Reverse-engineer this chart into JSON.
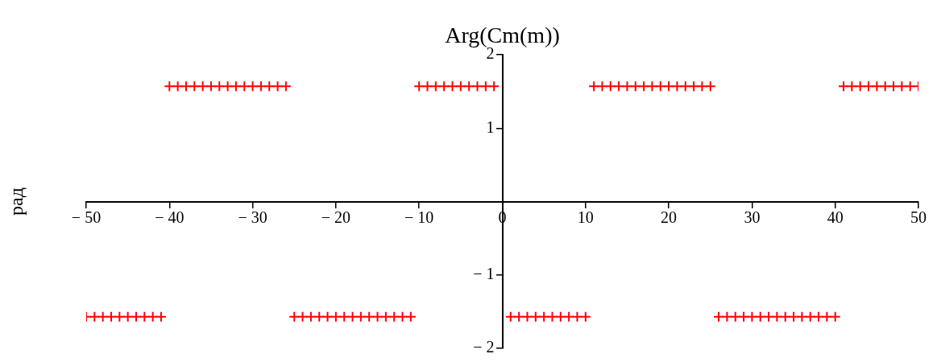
{
  "chart_data": {
    "type": "scatter",
    "title": "Arg(Cm(m))",
    "ylabel": "рад",
    "x": [
      -50,
      -49,
      -48,
      -47,
      -46,
      -45,
      -44,
      -43,
      -42,
      -41,
      -40,
      -39,
      -38,
      -37,
      -36,
      -35,
      -34,
      -33,
      -32,
      -31,
      -30,
      -29,
      -28,
      -27,
      -26,
      -25,
      -24,
      -23,
      -22,
      -21,
      -20,
      -19,
      -18,
      -17,
      -16,
      -15,
      -14,
      -13,
      -12,
      -11,
      -10,
      -9,
      -8,
      -7,
      -6,
      -5,
      -4,
      -3,
      -2,
      -1,
      1,
      2,
      3,
      4,
      5,
      6,
      7,
      8,
      9,
      10,
      11,
      12,
      13,
      14,
      15,
      16,
      17,
      18,
      19,
      20,
      21,
      22,
      23,
      24,
      25,
      26,
      27,
      28,
      29,
      30,
      31,
      32,
      33,
      34,
      35,
      36,
      37,
      38,
      39,
      40,
      41,
      42,
      43,
      44,
      45,
      46,
      47,
      48,
      49,
      50
    ],
    "series": [
      {
        "color": "#ff0000",
        "values": [
          -1.571,
          -1.571,
          -1.571,
          -1.571,
          -1.571,
          -1.571,
          -1.571,
          -1.571,
          -1.571,
          -1.571,
          1.571,
          1.571,
          1.571,
          1.571,
          1.571,
          1.571,
          1.571,
          1.571,
          1.571,
          1.571,
          1.571,
          1.571,
          1.571,
          1.571,
          1.571,
          -1.571,
          -1.571,
          -1.571,
          -1.571,
          -1.571,
          -1.571,
          -1.571,
          -1.571,
          -1.571,
          -1.571,
          -1.571,
          -1.571,
          -1.571,
          -1.571,
          -1.571,
          1.571,
          1.571,
          1.571,
          1.571,
          1.571,
          1.571,
          1.571,
          1.571,
          1.571,
          1.571,
          -1.571,
          -1.571,
          -1.571,
          -1.571,
          -1.571,
          -1.571,
          -1.571,
          -1.571,
          -1.571,
          -1.571,
          1.571,
          1.571,
          1.571,
          1.571,
          1.571,
          1.571,
          1.571,
          1.571,
          1.571,
          1.571,
          1.571,
          1.571,
          1.571,
          1.571,
          1.571,
          -1.571,
          -1.571,
          -1.571,
          -1.571,
          -1.571,
          -1.571,
          -1.571,
          -1.571,
          -1.571,
          -1.571,
          -1.571,
          -1.571,
          -1.571,
          -1.571,
          -1.571,
          1.571,
          1.571,
          1.571,
          1.571,
          1.571,
          1.571,
          1.571,
          1.571,
          1.571,
          1.571
        ]
      }
    ],
    "xlim": [
      -50,
      50
    ],
    "xticks": [
      {
        "value": -50,
        "label": "− 50"
      },
      {
        "value": -40,
        "label": "− 40"
      },
      {
        "value": -30,
        "label": "− 30"
      },
      {
        "value": -20,
        "label": "− 20"
      },
      {
        "value": -10,
        "label": "− 10"
      },
      0,
      10,
      20,
      30,
      40,
      50
    ],
    "ylim": [
      -2,
      2
    ],
    "yticks": [
      {
        "value": -2,
        "label": "− 2"
      },
      {
        "value": -1,
        "label": "− 1"
      },
      1,
      2
    ],
    "marker": "cross",
    "grid": false,
    "legend": false
  }
}
